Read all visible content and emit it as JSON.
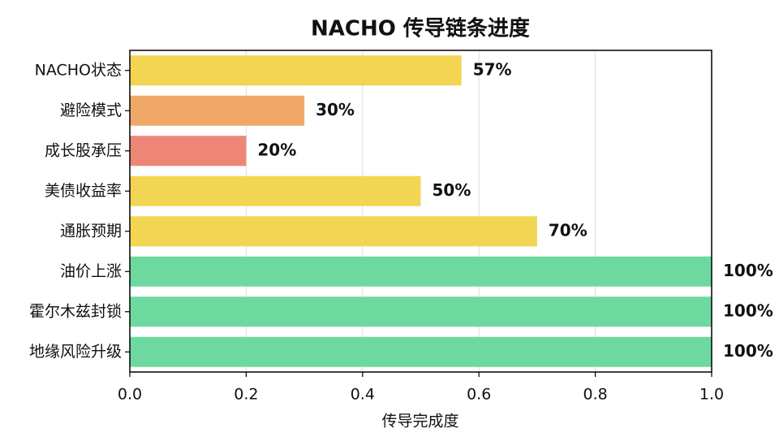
{
  "chart_data": {
    "type": "barh",
    "title": "NACHO 传导链条进度",
    "xlabel": "传导完成度",
    "categories": [
      "NACHO状态",
      "避险模式",
      "成长股承压",
      "美债收益率",
      "通胀预期",
      "油价上涨",
      "霍尔木兹封锁",
      "地缘风险升级"
    ],
    "values": [
      0.57,
      0.3,
      0.2,
      0.5,
      0.7,
      1,
      1,
      1
    ],
    "value_labels": [
      "57%",
      "30%",
      "20%",
      "50%",
      "70%",
      "100%",
      "100%",
      "100%"
    ],
    "colors": [
      "#f2d552",
      "#f0a868",
      "#ee8677",
      "#f2d552",
      "#f2d552",
      "#6dd99e",
      "#6dd99e",
      "#6dd99e"
    ],
    "xlim": [
      0,
      1
    ],
    "xticks": [
      {
        "value": 0,
        "label": "0.0"
      },
      0.2,
      0.4,
      0.6,
      0.8,
      {
        "value": 1,
        "label": "1.0"
      }
    ],
    "grid": true
  }
}
